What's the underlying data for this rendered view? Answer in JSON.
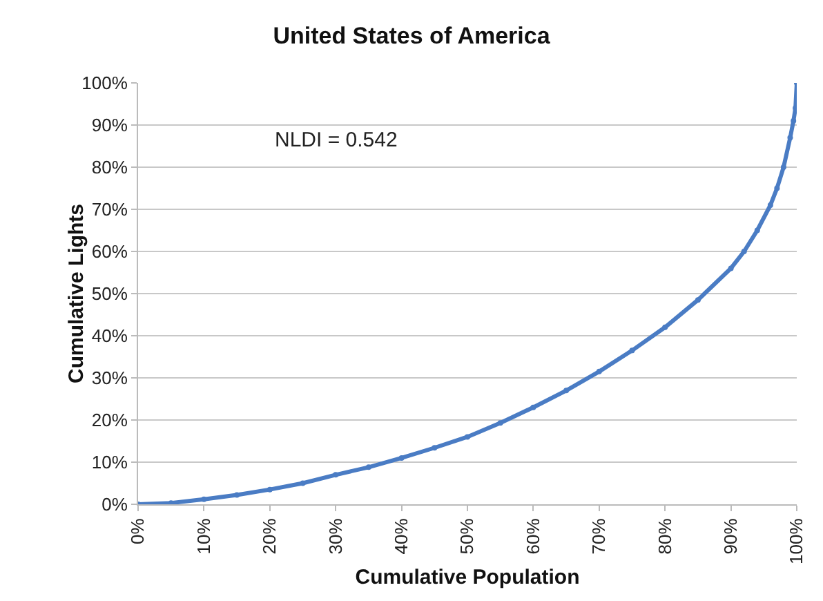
{
  "chart_data": {
    "type": "line",
    "title": "United States of America",
    "xlabel": "Cumulative Population",
    "ylabel": "Cumulative Lights",
    "annotations": [
      "NLDI = 0.542"
    ],
    "x": [
      0,
      5,
      10,
      15,
      20,
      25,
      30,
      35,
      40,
      45,
      50,
      55,
      60,
      65,
      70,
      75,
      80,
      85,
      90,
      92,
      94,
      96,
      97,
      98,
      99,
      99.5,
      99.8,
      100
    ],
    "series": [
      {
        "color": "#4a7cc4",
        "values": [
          0,
          0.3,
          1.2,
          2.2,
          3.5,
          5,
          7,
          8.8,
          11,
          13.4,
          16,
          19.3,
          23,
          27,
          31.5,
          36.5,
          42,
          48.5,
          56,
          60,
          65,
          71,
          75,
          80,
          87,
          91,
          94,
          100
        ]
      }
    ],
    "xlim": [
      0,
      100
    ],
    "ylim": [
      0,
      100
    ],
    "xticks": [
      {
        "value": 0,
        "label": "0%"
      },
      {
        "value": 10,
        "label": "10%"
      },
      {
        "value": 20,
        "label": "20%"
      },
      {
        "value": 30,
        "label": "30%"
      },
      {
        "value": 40,
        "label": "40%"
      },
      {
        "value": 50,
        "label": "50%"
      },
      {
        "value": 60,
        "label": "60%"
      },
      {
        "value": 70,
        "label": "70%"
      },
      {
        "value": 80,
        "label": "80%"
      },
      {
        "value": 90,
        "label": "90%"
      },
      {
        "value": 100,
        "label": "100%"
      }
    ],
    "yticks": [
      {
        "value": 0,
        "label": "0%"
      },
      {
        "value": 10,
        "label": "10%"
      },
      {
        "value": 20,
        "label": "20%"
      },
      {
        "value": 30,
        "label": "30%"
      },
      {
        "value": 40,
        "label": "40%"
      },
      {
        "value": 50,
        "label": "50%"
      },
      {
        "value": 60,
        "label": "60%"
      },
      {
        "value": 70,
        "label": "70%"
      },
      {
        "value": 80,
        "label": "80%"
      },
      {
        "value": 90,
        "label": "90%"
      },
      {
        "value": 100,
        "label": "100%"
      }
    ],
    "grid": "y",
    "marker": "circle",
    "line_style": "solid"
  }
}
